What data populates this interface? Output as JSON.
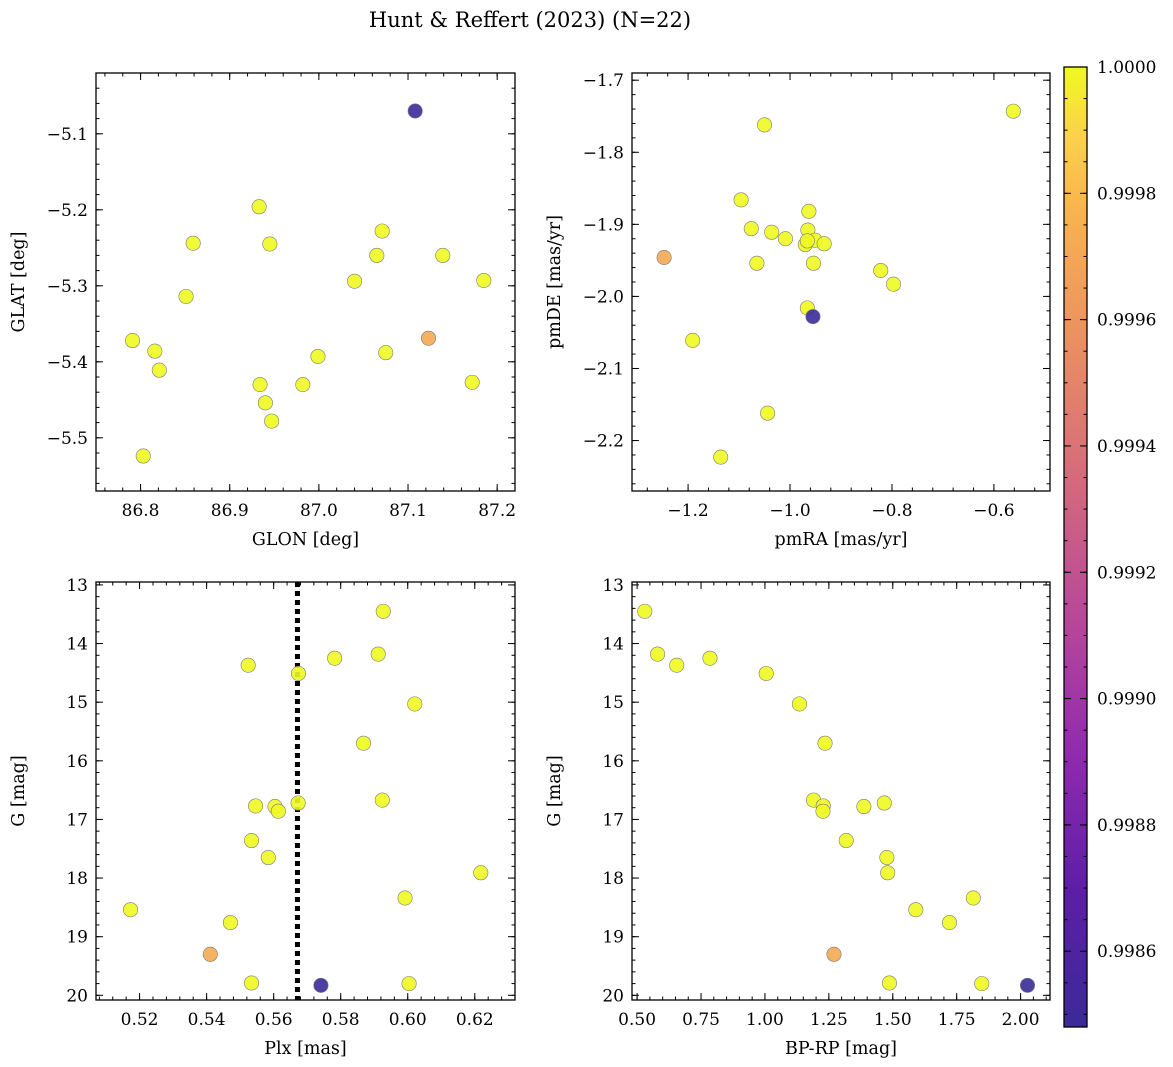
{
  "title": "Hunt & Reffert (2023) (N=22)",
  "colorbar": {
    "colormap": "plasma",
    "min": 0.99848,
    "max": 1.0,
    "ticks": [
      0.9986,
      0.9988,
      0.999,
      0.9992,
      0.9994,
      0.9996,
      0.9998,
      1.0
    ],
    "tick_labels": [
      "0.9986",
      "0.9988",
      "0.9990",
      "0.9992",
      "0.9994",
      "0.9996",
      "0.9998",
      "1.0000"
    ]
  },
  "colors": {
    "member_high": "#f0f921",
    "member_mid": "#fca636",
    "member_low": "#3b2a98",
    "reference_line": "#000000"
  },
  "chart_data": [
    {
      "id": "sky",
      "type": "scatter",
      "xlabel": "GLON [deg]",
      "ylabel": "GLAT [deg]",
      "xlim": [
        86.75,
        87.22
      ],
      "ylim": [
        -5.57,
        -5.02
      ],
      "y_inverted": false,
      "xticks": [
        86.8,
        86.9,
        87.0,
        87.1,
        87.2
      ],
      "xtick_labels": [
        "86.8",
        "86.9",
        "87.0",
        "87.1",
        "87.2"
      ],
      "yticks": [
        -5.1,
        -5.2,
        -5.3,
        -5.4,
        -5.5
      ],
      "ytick_labels": [
        "−5.1",
        "−5.2",
        "−5.3",
        "−5.4",
        "−5.5"
      ],
      "x": [
        87.108,
        86.933,
        86.859,
        86.945,
        87.071,
        87.065,
        87.139,
        87.04,
        87.185,
        86.851,
        86.791,
        87.123,
        86.816,
        86.821,
        86.999,
        87.075,
        86.934,
        86.982,
        87.172,
        86.94,
        86.947,
        86.803
      ],
      "y": [
        -5.07,
        -5.196,
        -5.244,
        -5.245,
        -5.228,
        -5.26,
        -5.26,
        -5.294,
        -5.293,
        -5.314,
        -5.372,
        -5.369,
        -5.386,
        -5.411,
        -5.393,
        -5.388,
        -5.43,
        -5.43,
        -5.427,
        -5.454,
        -5.478,
        -5.524
      ],
      "c": [
        0.99848,
        1.0,
        1.0,
        1.0,
        1.0,
        1.0,
        1.0,
        1.0,
        1.0,
        1.0,
        1.0,
        0.99972,
        1.0,
        1.0,
        1.0,
        1.0,
        1.0,
        1.0,
        1.0,
        1.0,
        1.0,
        1.0
      ]
    },
    {
      "id": "pm",
      "type": "scatter",
      "xlabel": "pmRA [mas/yr]",
      "ylabel": "pmDE [mas/yr]",
      "xlim": [
        -1.31,
        -0.49
      ],
      "ylim": [
        -2.27,
        -1.69
      ],
      "y_inverted": false,
      "xticks": [
        -1.2,
        -1.0,
        -0.8,
        -0.6
      ],
      "xtick_labels": [
        "−1.2",
        "−1.0",
        "−0.8",
        "−0.6"
      ],
      "yticks": [
        -1.7,
        -1.8,
        -1.9,
        -2.0,
        -2.1,
        -2.2
      ],
      "ytick_labels": [
        "−1.7",
        "−1.8",
        "−1.9",
        "−2.0",
        "−2.1",
        "−2.2"
      ],
      "x": [
        -0.562,
        -1.05,
        -1.096,
        -0.963,
        -1.076,
        -0.965,
        -1.036,
        -1.009,
        -0.951,
        -0.933,
        -0.97,
        -0.966,
        -1.065,
        -0.954,
        -1.247,
        -0.822,
        -0.797,
        -0.966,
        -0.955,
        -1.191,
        -1.044,
        -1.136
      ],
      "y": [
        -1.743,
        -1.762,
        -1.866,
        -1.882,
        -1.906,
        -1.908,
        -1.911,
        -1.92,
        -1.922,
        -1.927,
        -1.928,
        -1.923,
        -1.954,
        -1.954,
        -1.946,
        -1.964,
        -1.983,
        -2.016,
        -2.028,
        -2.061,
        -2.162,
        -2.223
      ],
      "c": [
        1.0,
        1.0,
        1.0,
        1.0,
        1.0,
        1.0,
        1.0,
        1.0,
        1.0,
        1.0,
        1.0,
        1.0,
        1.0,
        1.0,
        0.99972,
        1.0,
        1.0,
        1.0,
        0.99848,
        1.0,
        1.0,
        1.0
      ]
    },
    {
      "id": "plx",
      "type": "scatter",
      "xlabel": "Plx [mas]",
      "ylabel": "G [mag]",
      "xlim": [
        0.507,
        0.632
      ],
      "ylim": [
        12.95,
        20.08
      ],
      "y_inverted": true,
      "xticks": [
        0.52,
        0.54,
        0.56,
        0.58,
        0.6,
        0.62
      ],
      "xtick_labels": [
        "0.52",
        "0.54",
        "0.56",
        "0.58",
        "0.60",
        "0.62"
      ],
      "yticks": [
        13,
        14,
        15,
        16,
        17,
        18,
        19,
        20
      ],
      "ytick_labels": [
        "13",
        "14",
        "15",
        "16",
        "17",
        "18",
        "19",
        "20"
      ],
      "vline": 0.5671,
      "x": [
        0.5927,
        0.5524,
        0.5782,
        0.5912,
        0.5674,
        0.6021,
        0.5868,
        0.5546,
        0.5924,
        0.5604,
        0.5673,
        0.5614,
        0.5534,
        0.5584,
        0.6218,
        0.5992,
        0.5173,
        0.5471,
        0.5411,
        0.5534,
        0.5741,
        0.6004
      ],
      "y": [
        13.45,
        14.37,
        14.25,
        14.18,
        14.51,
        15.03,
        15.7,
        16.77,
        16.67,
        16.78,
        16.72,
        16.86,
        17.36,
        17.65,
        17.91,
        18.34,
        18.54,
        18.76,
        19.3,
        19.79,
        19.83,
        19.8
      ],
      "c": [
        1.0,
        1.0,
        1.0,
        1.0,
        1.0,
        1.0,
        1.0,
        1.0,
        1.0,
        1.0,
        1.0,
        1.0,
        1.0,
        1.0,
        1.0,
        1.0,
        1.0,
        1.0,
        0.99972,
        1.0,
        0.99848,
        1.0
      ]
    },
    {
      "id": "cmd",
      "type": "scatter",
      "xlabel": "BP-RP [mag]",
      "ylabel": "G [mag]",
      "xlim": [
        0.48,
        2.115
      ],
      "ylim": [
        12.95,
        20.08
      ],
      "y_inverted": true,
      "xticks": [
        0.5,
        0.75,
        1.0,
        1.25,
        1.5,
        1.75,
        2.0
      ],
      "xtick_labels": [
        "0.50",
        "0.75",
        "1.00",
        "1.25",
        "1.50",
        "1.75",
        "2.00"
      ],
      "yticks": [
        13,
        14,
        15,
        16,
        17,
        18,
        19,
        20
      ],
      "ytick_labels": [
        "13",
        "14",
        "15",
        "16",
        "17",
        "18",
        "19",
        "20"
      ],
      "x": [
        0.53,
        0.58,
        0.655,
        0.785,
        1.005,
        1.135,
        1.235,
        1.19,
        1.228,
        1.227,
        1.387,
        1.467,
        1.318,
        1.477,
        1.48,
        1.815,
        1.59,
        1.722,
        1.27,
        1.487,
        1.848,
        2.027
      ],
      "y": [
        13.45,
        14.18,
        14.37,
        14.25,
        14.51,
        15.03,
        15.7,
        16.67,
        16.77,
        16.86,
        16.78,
        16.72,
        17.36,
        17.65,
        17.91,
        18.34,
        18.54,
        18.76,
        19.3,
        19.79,
        19.8,
        19.83
      ],
      "c": [
        1.0,
        1.0,
        1.0,
        1.0,
        1.0,
        1.0,
        1.0,
        1.0,
        1.0,
        1.0,
        1.0,
        1.0,
        1.0,
        1.0,
        1.0,
        1.0,
        1.0,
        1.0,
        0.99972,
        1.0,
        1.0,
        0.99848
      ]
    }
  ]
}
